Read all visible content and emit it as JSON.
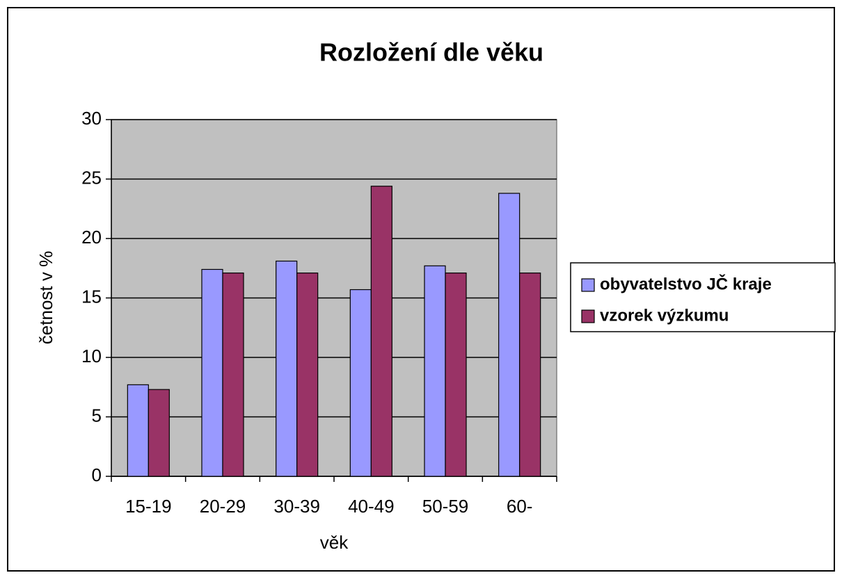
{
  "chart_data": {
    "type": "bar",
    "title": "Rozložení dle věku",
    "x_label": "věk",
    "y_label": "četnost v %",
    "categories": [
      "15-19",
      "20-29",
      "30-39",
      "40-49",
      "50-59",
      "60-"
    ],
    "series": [
      {
        "name": "obyvatelstvo JČ kraje",
        "color": "#9999ff",
        "values": [
          7.7,
          17.4,
          18.1,
          15.7,
          17.7,
          23.8
        ]
      },
      {
        "name": "vzorek výzkumu",
        "color": "#993366",
        "values": [
          7.3,
          17.1,
          17.1,
          24.4,
          17.1,
          17.1
        ]
      }
    ],
    "ylim": [
      0,
      30
    ],
    "yticks": [
      0,
      5,
      10,
      15,
      20,
      25,
      30
    ],
    "grid": true,
    "legend": "right"
  }
}
